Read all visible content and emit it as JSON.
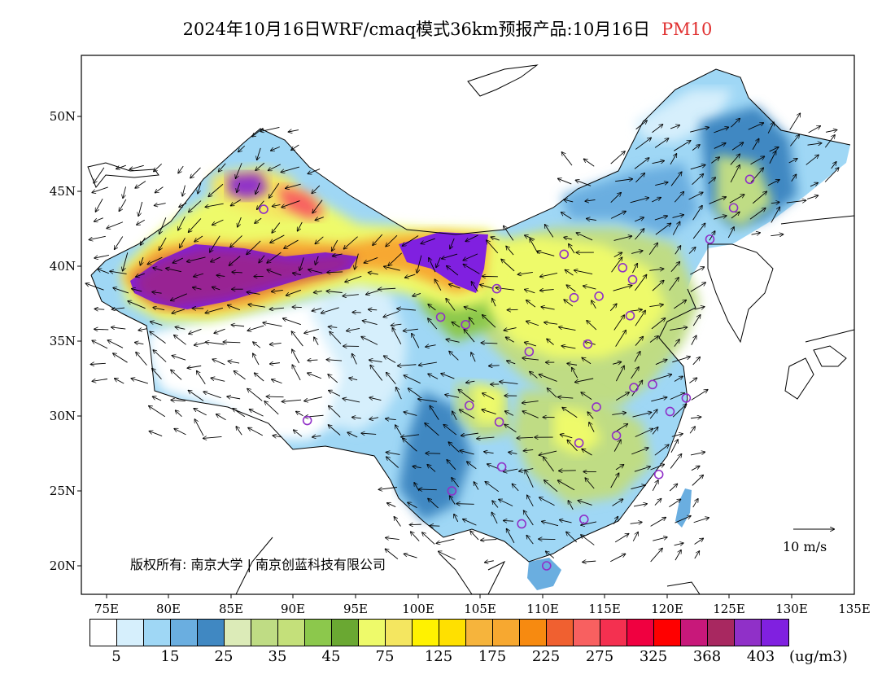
{
  "header": {
    "title": "2024年10月16日WRF/cmaq模式36km预报产品:10月16日",
    "pollutant": "PM10"
  },
  "map": {
    "lon_ticks": [
      "75E",
      "80E",
      "85E",
      "90E",
      "95E",
      "100E",
      "105E",
      "110E",
      "115E",
      "120E",
      "125E",
      "130E",
      "135E"
    ],
    "lat_ticks": [
      "50N",
      "45N",
      "40N",
      "35N",
      "30N",
      "25N",
      "20N"
    ],
    "copyright": "版权所有: 南京大学 | 南京创蓝科技有限公司",
    "wind_scale_label": "10 m/s",
    "concentration_unit": "(ug/m3)"
  },
  "legend": {
    "colors": [
      "#ffffff",
      "#d6effc",
      "#9fd7f5",
      "#6aaee0",
      "#4088c2",
      "#dcebb8",
      "#bfdc84",
      "#c4e07a",
      "#8cc84c",
      "#6aa832",
      "#eefa6a",
      "#f4e660",
      "#fff200",
      "#ffe000",
      "#f6b43c",
      "#f7a830",
      "#f78a10",
      "#f06030",
      "#f86060",
      "#f43050",
      "#f00040",
      "#ff0000",
      "#c8187a",
      "#a82860",
      "#9030c8",
      "#8020e0"
    ],
    "labels": [
      "5",
      "15",
      "25",
      "35",
      "45",
      "75",
      "125",
      "175",
      "225",
      "275",
      "325",
      "368",
      "403"
    ]
  },
  "stations": [
    {
      "lon": 87.6,
      "lat": 43.8
    },
    {
      "lon": 91.1,
      "lat": 29.7
    },
    {
      "lon": 101.8,
      "lat": 36.6
    },
    {
      "lon": 103.8,
      "lat": 36.1
    },
    {
      "lon": 106.3,
      "lat": 38.5
    },
    {
      "lon": 111.7,
      "lat": 40.8
    },
    {
      "lon": 112.5,
      "lat": 37.9
    },
    {
      "lon": 114.5,
      "lat": 38.0
    },
    {
      "lon": 116.4,
      "lat": 39.9
    },
    {
      "lon": 117.2,
      "lat": 39.1
    },
    {
      "lon": 117.0,
      "lat": 36.7
    },
    {
      "lon": 113.6,
      "lat": 34.8
    },
    {
      "lon": 108.9,
      "lat": 34.3
    },
    {
      "lon": 104.1,
      "lat": 30.7
    },
    {
      "lon": 106.5,
      "lat": 29.6
    },
    {
      "lon": 106.7,
      "lat": 26.6
    },
    {
      "lon": 102.7,
      "lat": 25.0
    },
    {
      "lon": 108.3,
      "lat": 22.8
    },
    {
      "lon": 113.3,
      "lat": 23.1
    },
    {
      "lon": 110.3,
      "lat": 20.0
    },
    {
      "lon": 112.9,
      "lat": 28.2
    },
    {
      "lon": 115.9,
      "lat": 28.7
    },
    {
      "lon": 114.3,
      "lat": 30.6
    },
    {
      "lon": 117.3,
      "lat": 31.9
    },
    {
      "lon": 118.8,
      "lat": 32.1
    },
    {
      "lon": 120.2,
      "lat": 30.3
    },
    {
      "lon": 121.5,
      "lat": 31.2
    },
    {
      "lon": 119.3,
      "lat": 26.1
    },
    {
      "lon": 123.4,
      "lat": 41.8
    },
    {
      "lon": 125.3,
      "lat": 43.9
    },
    {
      "lon": 126.6,
      "lat": 45.8
    }
  ]
}
